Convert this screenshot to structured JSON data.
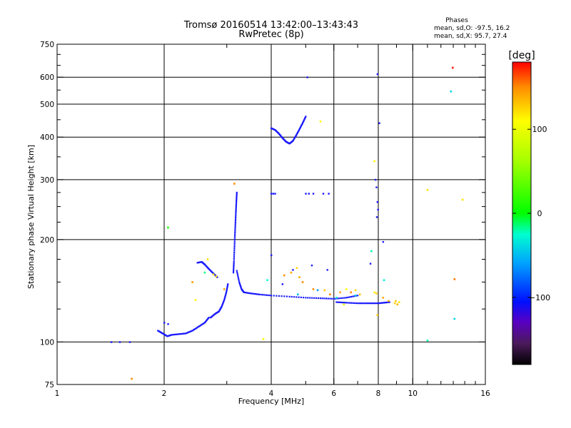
{
  "title": "Tromsø 20160514 13:42:00–13:43:43",
  "subtitle": "RwPretec (8p)",
  "phases": {
    "header": "Phases",
    "line_o": "mean, sd,O: -97.5, 16.2",
    "line_x": "mean, sd,X:  95.7, 27.4"
  },
  "colorbar": {
    "unit_label": "[deg]",
    "tick_labels": [
      "100",
      "0",
      "−100"
    ],
    "tick_values": [
      100,
      0,
      -100
    ],
    "range": [
      -180,
      180
    ],
    "stops": [
      {
        "v": -180,
        "color": "#000000"
      },
      {
        "v": -155,
        "color": "#4a1a5a"
      },
      {
        "v": -130,
        "color": "#5a00c0"
      },
      {
        "v": -105,
        "color": "#0010ff"
      },
      {
        "v": -60,
        "color": "#00a0ff"
      },
      {
        "v": -25,
        "color": "#00ffd0"
      },
      {
        "v": 0,
        "color": "#00ff00"
      },
      {
        "v": 60,
        "color": "#a0ff00"
      },
      {
        "v": 110,
        "color": "#ffff00"
      },
      {
        "v": 150,
        "color": "#ff8c00"
      },
      {
        "v": 180,
        "color": "#ff0000"
      }
    ]
  },
  "chart_data": {
    "type": "scatter",
    "xlabel": "Frequency [MHz]",
    "ylabel": "Stationary phase Virtual Height [km]",
    "xscale": "log",
    "yscale": "log",
    "xlim": [
      1,
      16
    ],
    "ylim": [
      75,
      750
    ],
    "grid": true,
    "xticks": [
      {
        "v": 1,
        "label": "1"
      },
      {
        "v": 2,
        "label": "2"
      },
      {
        "v": 4,
        "label": "4"
      },
      {
        "v": 6,
        "label": "6"
      },
      {
        "v": 8,
        "label": "8"
      },
      {
        "v": 10,
        "label": "10"
      },
      {
        "v": 16,
        "label": "16"
      }
    ],
    "xminor": [
      3,
      5,
      7,
      9,
      11,
      12,
      13,
      14,
      15
    ],
    "xgrid": [
      2,
      4,
      6,
      8,
      10
    ],
    "yticks": [
      {
        "v": 75,
        "label": "75"
      },
      {
        "v": 100,
        "label": "100"
      },
      {
        "v": 200,
        "label": "200"
      },
      {
        "v": 300,
        "label": "300"
      },
      {
        "v": 400,
        "label": "400"
      },
      {
        "v": 500,
        "label": "500"
      },
      {
        "v": 600,
        "label": "600"
      },
      {
        "v": 750,
        "label": "750"
      }
    ],
    "yminor": [
      125,
      150,
      175,
      225,
      250,
      275,
      350,
      450,
      550,
      650,
      700
    ],
    "ygrid": [
      100,
      200,
      300,
      400,
      500,
      600
    ],
    "series": [
      {
        "mode": "curves",
        "color": "#1a1aff",
        "curves": [
          [
            [
              1.92,
              108
            ],
            [
              1.98,
              106
            ],
            [
              2.04,
              104
            ],
            [
              2.1,
              105
            ],
            [
              2.2,
              105.5
            ],
            [
              2.3,
              106
            ],
            [
              2.4,
              108
            ],
            [
              2.5,
              111
            ],
            [
              2.6,
              114
            ],
            [
              2.67,
              118
            ]
          ],
          [
            [
              2.7,
              118
            ],
            [
              2.78,
              121
            ],
            [
              2.85,
              123
            ],
            [
              2.9,
              127
            ],
            [
              2.95,
              133
            ],
            [
              2.99,
              140
            ],
            [
              3.02,
              148
            ]
          ],
          [
            [
              3.13,
              160
            ],
            [
              3.14,
              172
            ],
            [
              3.15,
              188
            ],
            [
              3.16,
              205
            ],
            [
              3.17,
              222
            ],
            [
              3.18,
              240
            ],
            [
              3.19,
              258
            ],
            [
              3.2,
              275
            ]
          ],
          [
            [
              3.2,
              162
            ],
            [
              3.25,
              150
            ],
            [
              3.3,
              143
            ],
            [
              3.35,
              140
            ],
            [
              3.5,
              139
            ],
            [
              3.7,
              138
            ],
            [
              4.0,
              137
            ],
            [
              4.5,
              136
            ],
            [
              5.0,
              135
            ],
            [
              5.5,
              134.5
            ],
            [
              6.0,
              134
            ],
            [
              6.5,
              135
            ],
            [
              7.0,
              137
            ]
          ],
          [
            [
              6.1,
              131
            ],
            [
              6.5,
              130.5
            ],
            [
              7.0,
              130
            ],
            [
              7.5,
              130
            ],
            [
              8.0,
              130
            ],
            [
              8.3,
              130.5
            ],
            [
              8.6,
              131
            ]
          ],
          [
            [
              4.0,
              425
            ],
            [
              4.1,
              420
            ],
            [
              4.2,
              410
            ],
            [
              4.3,
              398
            ],
            [
              4.4,
              388
            ],
            [
              4.5,
              383
            ],
            [
              4.6,
              390
            ],
            [
              4.7,
              405
            ],
            [
              4.8,
              422
            ],
            [
              4.9,
              440
            ],
            [
              5.0,
              460
            ]
          ],
          [
            [
              2.48,
              171
            ],
            [
              2.55,
              172
            ],
            [
              2.6,
              169
            ],
            [
              2.67,
              164
            ],
            [
              2.75,
              159
            ],
            [
              2.82,
              155
            ]
          ]
        ]
      },
      {
        "mode": "points",
        "color": "#1a1aff",
        "points": [
          [
            1.42,
            100
          ],
          [
            1.5,
            100
          ],
          [
            1.6,
            100
          ],
          [
            2.0,
            114
          ],
          [
            2.05,
            113
          ],
          [
            4.0,
            273
          ],
          [
            4.05,
            273
          ],
          [
            4.1,
            273
          ],
          [
            5.0,
            273
          ],
          [
            5.1,
            273
          ],
          [
            5.25,
            273
          ],
          [
            5.6,
            273
          ],
          [
            5.8,
            273
          ],
          [
            7.85,
            300
          ],
          [
            7.9,
            285
          ],
          [
            7.95,
            258
          ],
          [
            7.98,
            245
          ],
          [
            7.92,
            233
          ],
          [
            8.25,
            197
          ],
          [
            4.0,
            180
          ],
          [
            5.2,
            168
          ],
          [
            5.75,
            163
          ],
          [
            7.6,
            170
          ],
          [
            8.05,
            440
          ],
          [
            5.05,
            600
          ],
          [
            7.95,
            613
          ],
          [
            4.6,
            163
          ],
          [
            4.3,
            148
          ]
        ]
      },
      {
        "mode": "colored",
        "points": [
          [
            2.45,
            133,
            110
          ],
          [
            2.4,
            150,
            145
          ],
          [
            1.62,
            78,
            150
          ],
          [
            2.65,
            175,
            120
          ],
          [
            2.6,
            160,
            -15
          ],
          [
            2.75,
            158,
            120
          ],
          [
            2.8,
            156,
            120
          ],
          [
            2.95,
            143,
            140
          ],
          [
            3.15,
            292,
            150
          ],
          [
            4.35,
            157,
            150
          ],
          [
            4.55,
            160,
            140
          ],
          [
            4.72,
            165,
            125
          ],
          [
            4.8,
            155,
            140
          ],
          [
            4.9,
            150,
            150
          ],
          [
            5.25,
            143,
            150
          ],
          [
            5.65,
            142,
            130
          ],
          [
            5.85,
            138,
            150
          ],
          [
            6.25,
            140,
            140
          ],
          [
            6.5,
            143,
            110
          ],
          [
            6.7,
            140,
            150
          ],
          [
            6.9,
            142,
            120
          ],
          [
            7.1,
            138,
            130
          ],
          [
            7.9,
            139,
            125
          ],
          [
            8.25,
            135,
            140
          ],
          [
            8.55,
            132,
            140
          ],
          [
            8.9,
            130,
            125
          ],
          [
            8.95,
            132,
            130
          ],
          [
            9.05,
            129,
            135
          ],
          [
            9.15,
            131,
            120
          ],
          [
            7.8,
            140,
            115
          ],
          [
            8.3,
            152,
            -30
          ],
          [
            7.65,
            185,
            -20
          ],
          [
            2.05,
            217,
            10
          ],
          [
            5.5,
            445,
            110
          ],
          [
            12.95,
            640,
            175
          ],
          [
            13.1,
            153,
            155
          ],
          [
            13.1,
            117,
            -40
          ],
          [
            13.8,
            262,
            120
          ],
          [
            11.0,
            280,
            120
          ],
          [
            11.0,
            101,
            -20
          ],
          [
            3.8,
            102,
            110
          ],
          [
            4.75,
            138,
            -50
          ],
          [
            5.4,
            142,
            -60
          ],
          [
            6.1,
            135,
            -30
          ],
          [
            6.9,
            137,
            -40
          ],
          [
            7.95,
            120,
            130
          ],
          [
            12.8,
            545,
            -40
          ],
          [
            7.8,
            340,
            110
          ],
          [
            3.9,
            152,
            -25
          ],
          [
            6.4,
            129,
            100
          ]
        ]
      }
    ]
  }
}
